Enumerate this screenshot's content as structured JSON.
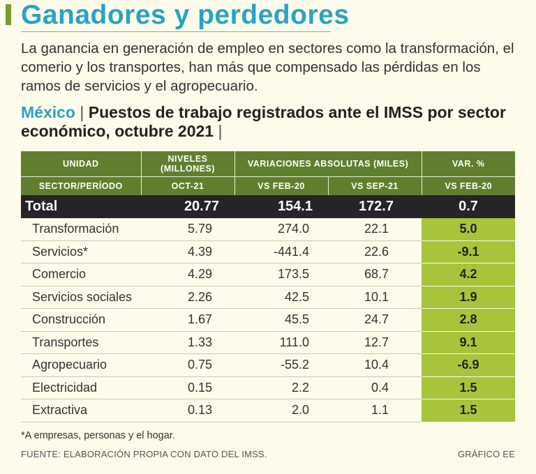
{
  "header": {
    "title": "Ganadores y perdedores",
    "subtitle": "La ganancia en generación de empleo en sectores como la transformación, el comerio y los transportes, han más que compensado las pérdidas en los ramos de servicios y el agropecuario.",
    "country": "México",
    "chart_title": "Puestos de trabajo registrados ante el IMSS por sector económico, octubre 2021"
  },
  "colors": {
    "title": "#29a3c4",
    "header_bg": "#5f7f2e",
    "total_bg": "#262426",
    "highlight": "#a8c43a",
    "background": "#fdfbea"
  },
  "chart_data": {
    "type": "table",
    "title": "Puestos de trabajo registrados ante el IMSS por sector económico, octubre 2021",
    "header_top": {
      "unidad": "UNIDAD",
      "niveles": "NIVELES",
      "millones": "(MILLONES)",
      "variaciones": "VARIACIONES ABSOLUTAS (MILES)",
      "var_pct": "VAR. %"
    },
    "header_bottom": {
      "sector": "SECTOR/PERÍODO",
      "oct": "OCT-21",
      "vs_feb": "VS FEB-20",
      "vs_sep": "VS SEP-21",
      "vs_feb_pct": "VS FEB-20"
    },
    "columns": [
      "Sector",
      "Niveles oct-21 (millones)",
      "Var. abs. vs feb-20 (miles)",
      "Var. abs. vs sep-21 (miles)",
      "Var. % vs feb-20"
    ],
    "total": {
      "label": "Total",
      "nivel": "20.77",
      "vs_feb": "154.1",
      "vs_sep": "172.7",
      "pct": "0.7"
    },
    "rows": [
      {
        "sector": "Transformación",
        "nivel": "5.79",
        "vs_feb": "274.0",
        "vs_sep": "22.1",
        "pct": "5.0"
      },
      {
        "sector": "Servicios*",
        "nivel": "4.39",
        "vs_feb": "-441.4",
        "vs_sep": "22.6",
        "pct": "-9.1"
      },
      {
        "sector": "Comercio",
        "nivel": "4.29",
        "vs_feb": "173.5",
        "vs_sep": "68.7",
        "pct": "4.2"
      },
      {
        "sector": "Servicios sociales",
        "nivel": "2.26",
        "vs_feb": "42.5",
        "vs_sep": "10.1",
        "pct": "1.9"
      },
      {
        "sector": "Construcción",
        "nivel": "1.67",
        "vs_feb": "45.5",
        "vs_sep": "24.7",
        "pct": "2.8"
      },
      {
        "sector": "Transportes",
        "nivel": "1.33",
        "vs_feb": "111.0",
        "vs_sep": "12.7",
        "pct": "9.1"
      },
      {
        "sector": "Agropecuario",
        "nivel": "0.75",
        "vs_feb": "-55.2",
        "vs_sep": "10.4",
        "pct": "-6.9"
      },
      {
        "sector": "Electricidad",
        "nivel": "0.15",
        "vs_feb": "2.2",
        "vs_sep": "0.4",
        "pct": "1.5"
      },
      {
        "sector": "Extractiva",
        "nivel": "0.13",
        "vs_feb": "2.0",
        "vs_sep": "1.1",
        "pct": "1.5"
      }
    ]
  },
  "footer": {
    "footnote": "*A empresas, personas y el hogar.",
    "source": "FUENTE: ELABORACIÓN PROPIA CON DATO DEL IMSS.",
    "credit": "GRÁFICO EE"
  }
}
